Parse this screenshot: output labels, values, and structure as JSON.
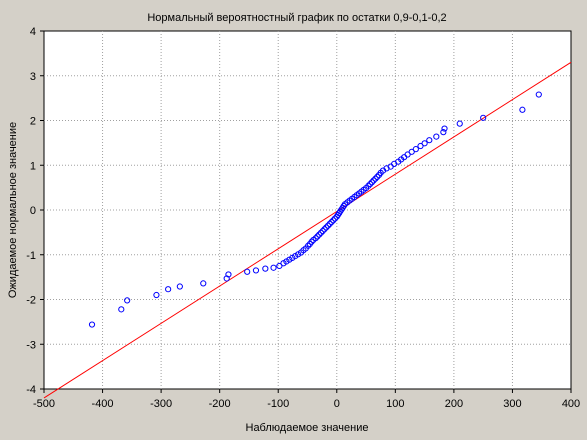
{
  "chart_data": {
    "type": "scatter",
    "title": "Нормальный вероятностный график по остатки 0,9-0,1-0,2",
    "xlabel": "Наблюдаемое значение",
    "ylabel": "Ожидаемое нормальное значение",
    "xlim": [
      -500,
      400
    ],
    "ylim": [
      -4,
      4
    ],
    "xticks": [
      "-500",
      "-400",
      "-300",
      "-200",
      "-100",
      "0",
      "100",
      "200",
      "300",
      "400"
    ],
    "yticks": [
      "4",
      "3",
      "2",
      "1",
      "0",
      "-1",
      "-2",
      "-3",
      "-4"
    ],
    "grid": true,
    "colors": {
      "background": "#d4d0c8",
      "plot_background": "#ffffff",
      "points": "#0000ff",
      "reference_line": "#ff0000",
      "grid": "#a0a0a0"
    },
    "reference_line": {
      "x": [
        -500,
        400
      ],
      "y": [
        -4.2,
        3.3
      ]
    },
    "series": [
      {
        "points": [
          [
            -418,
            -2.56
          ],
          [
            -368,
            -2.22
          ],
          [
            -358,
            -2.02
          ],
          [
            -308,
            -1.9
          ],
          [
            -288,
            -1.77
          ],
          [
            -268,
            -1.71
          ],
          [
            -228,
            -1.64
          ],
          [
            -188,
            -1.53
          ],
          [
            -185,
            -1.44
          ],
          [
            -153,
            -1.38
          ],
          [
            -138,
            -1.35
          ],
          [
            -122,
            -1.31
          ],
          [
            -108,
            -1.29
          ],
          [
            -98,
            -1.25
          ],
          [
            -91,
            -1.19
          ],
          [
            -86,
            -1.15
          ],
          [
            -81,
            -1.11
          ],
          [
            -76,
            -1.07
          ],
          [
            -71,
            -1.03
          ],
          [
            -66,
            -0.99
          ],
          [
            -61,
            -0.95
          ],
          [
            -57,
            -0.9
          ],
          [
            -53,
            -0.86
          ],
          [
            -49,
            -0.8
          ],
          [
            -46,
            -0.76
          ],
          [
            -43,
            -0.71
          ],
          [
            -40,
            -0.67
          ],
          [
            -36,
            -0.63
          ],
          [
            -33,
            -0.59
          ],
          [
            -30,
            -0.55
          ],
          [
            -27,
            -0.51
          ],
          [
            -24,
            -0.47
          ],
          [
            -21,
            -0.43
          ],
          [
            -18,
            -0.39
          ],
          [
            -15,
            -0.35
          ],
          [
            -12,
            -0.31
          ],
          [
            -9,
            -0.27
          ],
          [
            -6,
            -0.23
          ],
          [
            -3,
            -0.19
          ],
          [
            0,
            -0.15
          ],
          [
            2,
            -0.11
          ],
          [
            4,
            -0.07
          ],
          [
            6,
            -0.03
          ],
          [
            8,
            0.01
          ],
          [
            10,
            0.05
          ],
          [
            12,
            0.09
          ],
          [
            14,
            0.13
          ],
          [
            18,
            0.17
          ],
          [
            22,
            0.21
          ],
          [
            26,
            0.25
          ],
          [
            30,
            0.29
          ],
          [
            34,
            0.33
          ],
          [
            38,
            0.37
          ],
          [
            42,
            0.41
          ],
          [
            46,
            0.45
          ],
          [
            50,
            0.49
          ],
          [
            54,
            0.54
          ],
          [
            57,
            0.58
          ],
          [
            60,
            0.62
          ],
          [
            63,
            0.66
          ],
          [
            66,
            0.7
          ],
          [
            69,
            0.74
          ],
          [
            72,
            0.78
          ],
          [
            75,
            0.83
          ],
          [
            79,
            0.88
          ],
          [
            85,
            0.93
          ],
          [
            92,
            0.97
          ],
          [
            98,
            1.03
          ],
          [
            105,
            1.08
          ],
          [
            110,
            1.13
          ],
          [
            115,
            1.18
          ],
          [
            121,
            1.24
          ],
          [
            128,
            1.3
          ],
          [
            135,
            1.36
          ],
          [
            143,
            1.43
          ],
          [
            150,
            1.49
          ],
          [
            158,
            1.56
          ],
          [
            170,
            1.64
          ],
          [
            182,
            1.74
          ],
          [
            184,
            1.82
          ],
          [
            210,
            1.93
          ],
          [
            250,
            2.06
          ],
          [
            317,
            2.24
          ],
          [
            345,
            2.58
          ]
        ]
      }
    ]
  }
}
